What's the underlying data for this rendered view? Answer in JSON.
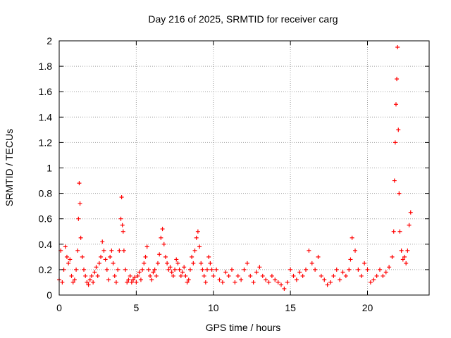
{
  "chart_data": {
    "type": "scatter",
    "title": "Day 216 of 2025, SRMTID for receiver carg",
    "xlabel": "GPS time / hours",
    "ylabel": "SRMTID / TECUs",
    "xlim": [
      0,
      24
    ],
    "ylim": [
      0,
      2
    ],
    "xticks": [
      0,
      5,
      10,
      15,
      20
    ],
    "yticks": [
      0,
      0.2,
      0.4,
      0.6,
      0.8,
      1,
      1.2,
      1.4,
      1.6,
      1.8,
      2
    ],
    "grid": true,
    "marker": "+",
    "color": "#ff0000",
    "series": [
      {
        "name": "SRMTID",
        "x": [
          0.0,
          0.1,
          0.2,
          0.3,
          0.4,
          0.5,
          0.6,
          0.7,
          0.8,
          0.9,
          1.0,
          1.1,
          1.2,
          1.25,
          1.3,
          1.35,
          1.4,
          1.5,
          1.6,
          1.7,
          1.8,
          1.9,
          2.0,
          2.1,
          2.2,
          2.3,
          2.4,
          2.5,
          2.6,
          2.7,
          2.8,
          2.9,
          3.0,
          3.1,
          3.2,
          3.3,
          3.4,
          3.5,
          3.6,
          3.7,
          3.8,
          3.9,
          4.0,
          4.05,
          4.1,
          4.15,
          4.2,
          4.3,
          4.4,
          4.5,
          4.6,
          4.7,
          4.8,
          4.9,
          5.0,
          5.1,
          5.2,
          5.3,
          5.4,
          5.5,
          5.6,
          5.7,
          5.8,
          5.9,
          6.0,
          6.1,
          6.2,
          6.3,
          6.4,
          6.5,
          6.6,
          6.7,
          6.8,
          6.9,
          7.0,
          7.1,
          7.2,
          7.3,
          7.4,
          7.5,
          7.6,
          7.7,
          7.8,
          7.9,
          8.0,
          8.1,
          8.2,
          8.3,
          8.4,
          8.5,
          8.6,
          8.7,
          8.8,
          8.9,
          9.0,
          9.1,
          9.2,
          9.3,
          9.4,
          9.5,
          9.6,
          9.7,
          9.8,
          9.9,
          10.0,
          10.2,
          10.4,
          10.6,
          10.8,
          11.0,
          11.2,
          11.4,
          11.6,
          11.8,
          12.0,
          12.2,
          12.4,
          12.6,
          12.8,
          13.0,
          13.2,
          13.4,
          13.6,
          13.8,
          14.0,
          14.2,
          14.4,
          14.6,
          14.8,
          15.0,
          15.2,
          15.4,
          15.6,
          15.8,
          16.0,
          16.2,
          16.4,
          16.6,
          16.8,
          17.0,
          17.2,
          17.4,
          17.6,
          17.8,
          18.0,
          18.2,
          18.4,
          18.6,
          18.8,
          18.9,
          19.0,
          19.2,
          19.4,
          19.6,
          19.8,
          20.0,
          20.2,
          20.4,
          20.6,
          20.8,
          21.0,
          21.2,
          21.4,
          21.6,
          21.7,
          21.75,
          21.8,
          21.85,
          21.9,
          21.95,
          22.0,
          22.05,
          22.1,
          22.2,
          22.3,
          22.4,
          22.5,
          22.6,
          22.7,
          22.8
        ],
        "y": [
          0.12,
          0.35,
          0.1,
          0.2,
          0.38,
          0.3,
          0.25,
          0.28,
          0.15,
          0.1,
          0.12,
          0.2,
          0.35,
          0.6,
          0.88,
          0.72,
          0.45,
          0.3,
          0.2,
          0.15,
          0.1,
          0.08,
          0.12,
          0.15,
          0.1,
          0.18,
          0.22,
          0.15,
          0.25,
          0.3,
          0.42,
          0.35,
          0.28,
          0.2,
          0.12,
          0.3,
          0.35,
          0.25,
          0.15,
          0.1,
          0.2,
          0.35,
          0.6,
          0.77,
          0.55,
          0.5,
          0.35,
          0.2,
          0.1,
          0.12,
          0.15,
          0.1,
          0.12,
          0.14,
          0.1,
          0.15,
          0.18,
          0.12,
          0.2,
          0.25,
          0.3,
          0.38,
          0.2,
          0.15,
          0.12,
          0.18,
          0.2,
          0.15,
          0.25,
          0.32,
          0.45,
          0.52,
          0.4,
          0.3,
          0.25,
          0.2,
          0.22,
          0.18,
          0.15,
          0.2,
          0.28,
          0.25,
          0.2,
          0.15,
          0.18,
          0.22,
          0.15,
          0.1,
          0.12,
          0.2,
          0.3,
          0.25,
          0.35,
          0.45,
          0.5,
          0.38,
          0.25,
          0.2,
          0.15,
          0.1,
          0.2,
          0.3,
          0.25,
          0.2,
          0.15,
          0.2,
          0.12,
          0.1,
          0.18,
          0.15,
          0.2,
          0.1,
          0.15,
          0.12,
          0.2,
          0.25,
          0.15,
          0.1,
          0.18,
          0.22,
          0.15,
          0.12,
          0.1,
          0.15,
          0.12,
          0.1,
          0.08,
          0.05,
          0.1,
          0.2,
          0.15,
          0.12,
          0.18,
          0.15,
          0.2,
          0.35,
          0.25,
          0.2,
          0.3,
          0.15,
          0.12,
          0.08,
          0.1,
          0.15,
          0.2,
          0.12,
          0.18,
          0.15,
          0.2,
          0.28,
          0.45,
          0.35,
          0.2,
          0.15,
          0.25,
          0.2,
          0.1,
          0.12,
          0.15,
          0.2,
          0.15,
          0.18,
          0.22,
          0.3,
          0.5,
          0.9,
          1.2,
          1.5,
          1.7,
          1.95,
          1.3,
          0.8,
          0.5,
          0.35,
          0.28,
          0.3,
          0.25,
          0.35,
          0.55,
          0.65
        ]
      }
    ]
  }
}
